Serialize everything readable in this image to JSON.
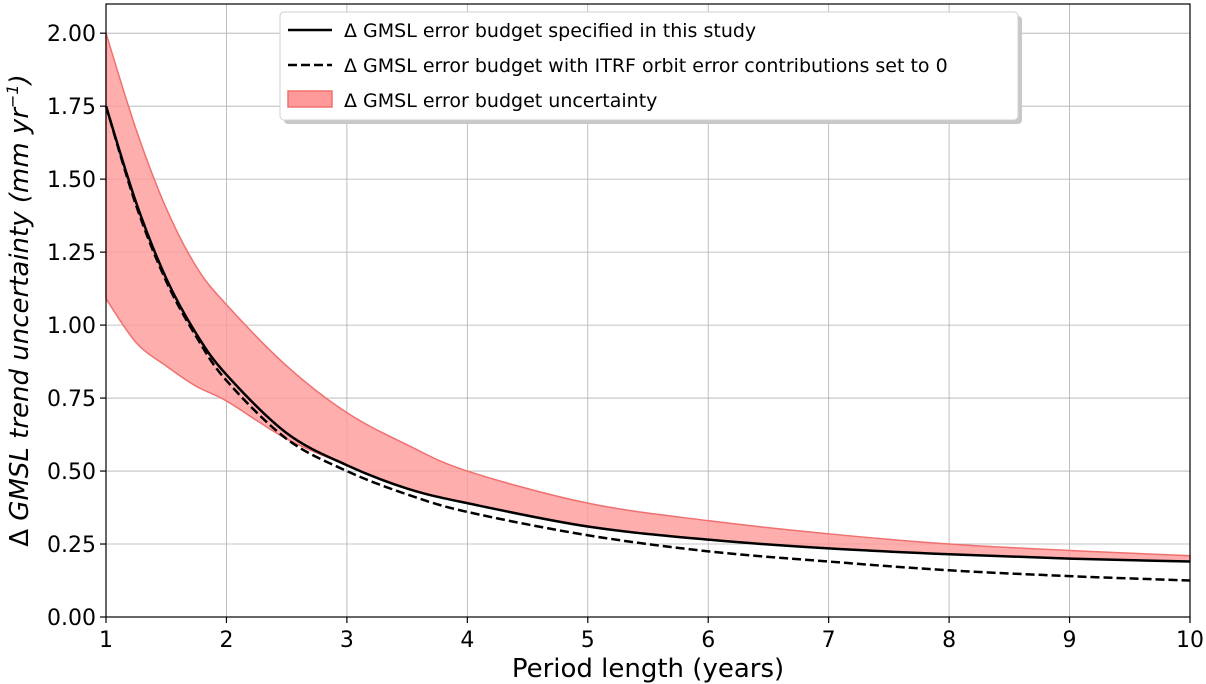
{
  "chart_data": {
    "type": "line",
    "title": "",
    "xlabel": "Period length (years)",
    "ylabel": {
      "prefix": "Δ ",
      "italic": "GMSL trend uncertainty (mm yr",
      "superscript": "−1",
      "suffix": ")"
    },
    "xlim": [
      1,
      10
    ],
    "ylim": [
      0,
      2.1
    ],
    "grid": true,
    "x_ticks": [
      1,
      2,
      3,
      4,
      5,
      6,
      7,
      8,
      9,
      10
    ],
    "x_tick_labels": [
      "1",
      "2",
      "3",
      "4",
      "5",
      "6",
      "7",
      "8",
      "9",
      "10"
    ],
    "y_ticks": [
      0,
      0.25,
      0.5,
      0.75,
      1.0,
      1.25,
      1.5,
      1.75,
      2.0
    ],
    "y_tick_labels": [
      "0.00",
      "0.25",
      "0.50",
      "0.75",
      "1.00",
      "1.25",
      "1.50",
      "1.75",
      "2.00"
    ],
    "x": [
      1,
      1.25,
      1.5,
      1.75,
      2,
      2.5,
      3,
      3.5,
      4,
      5,
      6,
      7,
      8,
      9,
      10
    ],
    "series": [
      {
        "name": "Δ GMSL error budget specified in this study",
        "style": "solid",
        "color": "#000000",
        "values": [
          1.75,
          1.42,
          1.16,
          0.97,
          0.83,
          0.63,
          0.52,
          0.44,
          0.39,
          0.31,
          0.265,
          0.235,
          0.215,
          0.2,
          0.19
        ]
      },
      {
        "name": "Δ GMSL error budget with ITRF orbit error contributions set to 0",
        "style": "dashed",
        "color": "#000000",
        "values": [
          1.75,
          1.41,
          1.15,
          0.96,
          0.81,
          0.61,
          0.5,
          0.42,
          0.36,
          0.28,
          0.225,
          0.19,
          0.16,
          0.14,
          0.125
        ]
      }
    ],
    "band": {
      "name": "Δ GMSL error budget uncertainty",
      "color": "#ff9a9a",
      "edge_color": "#f07070",
      "upper": [
        2.0,
        1.67,
        1.4,
        1.2,
        1.07,
        0.86,
        0.7,
        0.59,
        0.5,
        0.39,
        0.33,
        0.285,
        0.25,
        0.228,
        0.21
      ],
      "lower": [
        1.09,
        0.94,
        0.86,
        0.79,
        0.74,
        0.61,
        0.52,
        0.44,
        0.39,
        0.31,
        0.265,
        0.235,
        0.215,
        0.2,
        0.19
      ]
    },
    "legend_position": "top-center"
  }
}
